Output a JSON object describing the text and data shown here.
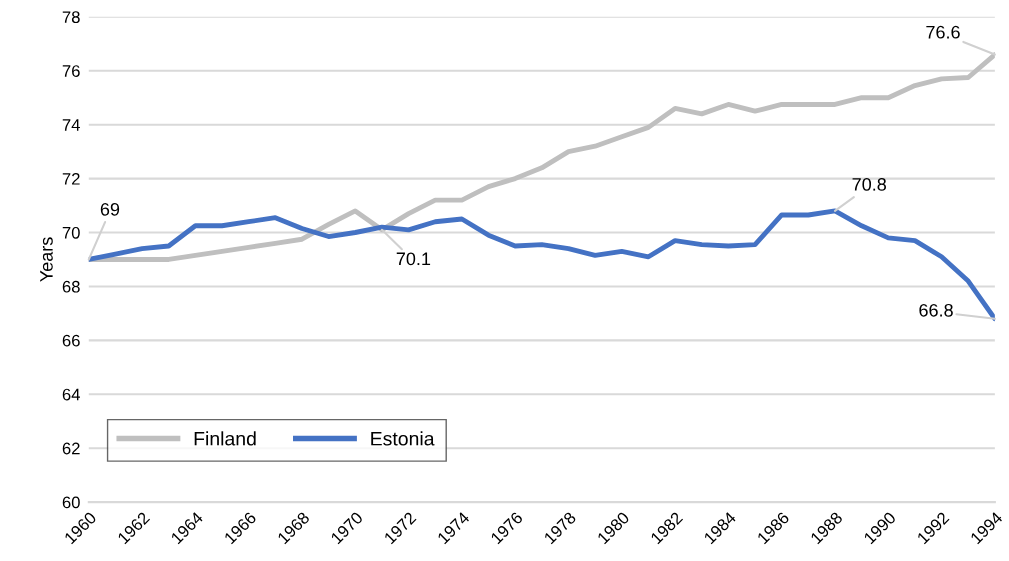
{
  "chart_data": {
    "type": "line",
    "ylabel": "Years",
    "x": [
      1960,
      1961,
      1962,
      1963,
      1964,
      1965,
      1966,
      1967,
      1968,
      1969,
      1970,
      1971,
      1972,
      1973,
      1974,
      1975,
      1976,
      1977,
      1978,
      1979,
      1980,
      1981,
      1982,
      1983,
      1984,
      1985,
      1986,
      1987,
      1988,
      1989,
      1990,
      1991,
      1992,
      1993,
      1994
    ],
    "series": [
      {
        "name": "Finland",
        "color": "#bfbfbf",
        "values": [
          69,
          69,
          69,
          69,
          69.15,
          69.3,
          69.45,
          69.6,
          69.75,
          70.3,
          70.8,
          70.1,
          70.7,
          71.2,
          71.2,
          71.7,
          72.0,
          72.4,
          73.0,
          73.2,
          73.55,
          73.9,
          74.6,
          74.4,
          74.75,
          74.5,
          74.75,
          74.75,
          74.75,
          75.0,
          75.0,
          75.45,
          75.7,
          75.75,
          76.6
        ]
      },
      {
        "name": "Estonia",
        "color": "#4472c4",
        "values": [
          69.0,
          69.2,
          69.4,
          69.5,
          70.25,
          70.25,
          70.4,
          70.55,
          70.15,
          69.85,
          70.0,
          70.2,
          70.1,
          70.4,
          70.5,
          69.9,
          69.5,
          69.55,
          69.4,
          69.15,
          69.3,
          69.1,
          69.7,
          69.55,
          69.5,
          69.55,
          70.65,
          70.65,
          70.8,
          70.25,
          69.8,
          69.7,
          69.1,
          68.2,
          66.8
        ]
      }
    ],
    "xlim": [
      1960,
      1994
    ],
    "xticks": [
      1960,
      1962,
      1964,
      1966,
      1968,
      1970,
      1972,
      1974,
      1976,
      1978,
      1980,
      1982,
      1984,
      1986,
      1988,
      1990,
      1992,
      1994
    ],
    "ylim": [
      60,
      78
    ],
    "yticks": [
      60,
      62,
      64,
      66,
      68,
      70,
      72,
      74,
      76,
      78
    ],
    "grid": "y",
    "legend": "bottom left",
    "marker": "none",
    "line_style": "solid",
    "annotations": [
      {
        "text": "69",
        "x": 1960,
        "y": 69
      },
      {
        "text": "70.1",
        "x": 1971,
        "y": 70.1
      },
      {
        "text": "70.8",
        "x": 1988,
        "y": 70.8
      },
      {
        "text": "76.6",
        "x": 1994,
        "y": 76.6
      },
      {
        "text": "66.8",
        "x": 1994,
        "y": 66.8
      }
    ]
  }
}
